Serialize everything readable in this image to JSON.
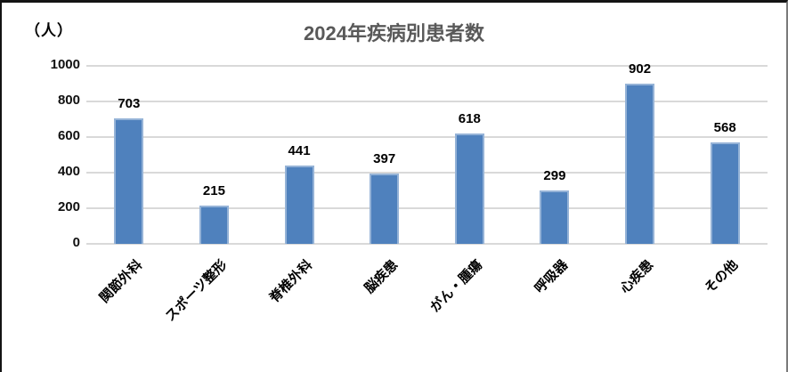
{
  "window": {
    "background": "#ffffff",
    "border_top_left_color": "#141414",
    "border_right_color": "#7a7a7a"
  },
  "chart_data": {
    "type": "bar",
    "title": "2024年疾病別患者数",
    "unit_label": "（人）",
    "categories": [
      "関節外科",
      "スポーツ整形",
      "脊椎外科",
      "脳疾患",
      "がん・腫瘍",
      "呼吸器",
      "心疾患",
      "その他"
    ],
    "values": [
      703,
      215,
      441,
      397,
      618,
      299,
      902,
      568
    ],
    "xlabel": "",
    "ylabel": "（人）",
    "ylim": [
      0,
      1000
    ],
    "yticks": [
      0,
      200,
      400,
      600,
      800,
      1000
    ],
    "grid": "horizontal",
    "legend": "none",
    "data_labels": true,
    "category_label_rotation_deg": 45,
    "colors": {
      "bar_fill": "#4f81bd",
      "bar_border": "#95b3d7",
      "gridline": "#d9d9d9",
      "title": "#595959",
      "axis_text": "#000000"
    }
  }
}
